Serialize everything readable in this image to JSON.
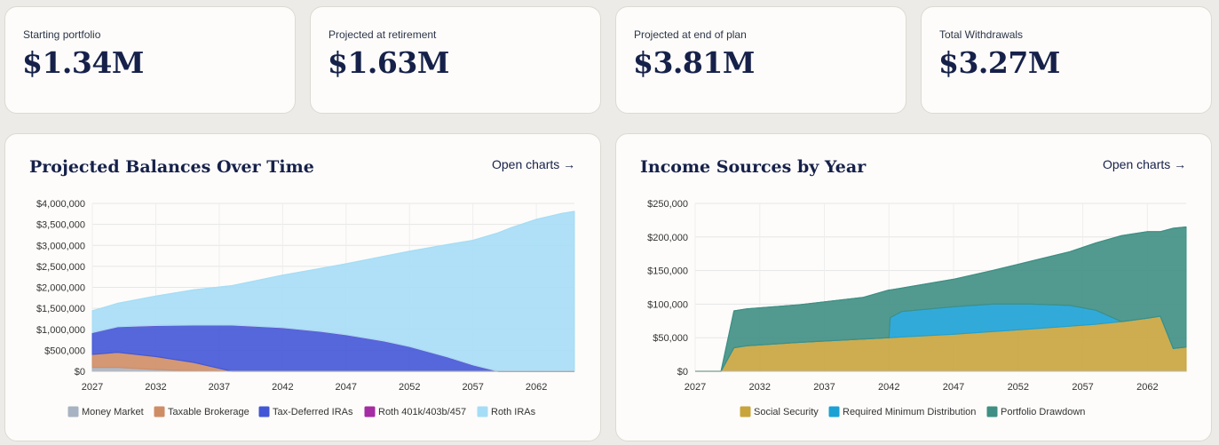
{
  "stats": [
    {
      "label": "Starting portfolio",
      "value": "$1.34M"
    },
    {
      "label": "Projected at retirement",
      "value": "$1.63M"
    },
    {
      "label": "Projected at end of plan",
      "value": "$3.81M"
    },
    {
      "label": "Total Withdrawals",
      "value": "$3.27M"
    }
  ],
  "panels": {
    "balances": {
      "title": "Projected Balances Over Time",
      "link": "Open charts →"
    },
    "income": {
      "title": "Income Sources by Year",
      "link": "Open charts →"
    }
  },
  "chart_data": [
    {
      "type": "area",
      "stacked": true,
      "title": "Projected Balances Over Time",
      "x_ticks": [
        2027,
        2032,
        2037,
        2042,
        2047,
        2052,
        2057,
        2062
      ],
      "xlim": [
        2027,
        2065
      ],
      "ylim": [
        0,
        4000000
      ],
      "y_ticks": [
        0,
        500000,
        1000000,
        1500000,
        2000000,
        2500000,
        3000000,
        3500000,
        4000000
      ],
      "y_tick_labels": [
        "$0",
        "$500,000",
        "$1,000,000",
        "$1,500,000",
        "$2,000,000",
        "$2,500,000",
        "$3,000,000",
        "$3,500,000",
        "$4,000,000"
      ],
      "grid": true,
      "legend": "bottom",
      "x": [
        2027,
        2029,
        2032,
        2035,
        2038,
        2042,
        2045,
        2047,
        2050,
        2052,
        2055,
        2057,
        2059,
        2060,
        2062,
        2064,
        2065
      ],
      "series": [
        {
          "name": "Money Market",
          "color": "#a7b3c2",
          "values": [
            90000,
            90000,
            40000,
            10000,
            0,
            0,
            0,
            0,
            0,
            0,
            0,
            0,
            0,
            0,
            0,
            0,
            0
          ]
        },
        {
          "name": "Taxable Brokerage",
          "color": "#cf8d66",
          "values": [
            310000,
            360000,
            310000,
            200000,
            0,
            0,
            0,
            0,
            0,
            0,
            0,
            0,
            0,
            0,
            0,
            0,
            0
          ]
        },
        {
          "name": "Tax-Deferred IRAs",
          "color": "#4257d6",
          "values": [
            520000,
            610000,
            740000,
            890000,
            1100000,
            1040000,
            950000,
            870000,
            720000,
            590000,
            340000,
            150000,
            0,
            0,
            0,
            0,
            0
          ]
        },
        {
          "name": "Roth 401k/403b/457",
          "color": "#a52ca2",
          "values": [
            0,
            0,
            0,
            0,
            0,
            0,
            0,
            0,
            0,
            0,
            0,
            0,
            0,
            0,
            0,
            0,
            0
          ]
        },
        {
          "name": "Roth IRAs",
          "color": "#a6ddf6",
          "values": [
            520000,
            560000,
            700000,
            840000,
            940000,
            1250000,
            1500000,
            1690000,
            2020000,
            2270000,
            2680000,
            2970000,
            3300000,
            3420000,
            3620000,
            3760000,
            3810000
          ]
        }
      ]
    },
    {
      "type": "area",
      "stacked": true,
      "title": "Income Sources by Year",
      "x_ticks": [
        2027,
        2032,
        2037,
        2042,
        2047,
        2052,
        2057,
        2062
      ],
      "xlim": [
        2027,
        2065
      ],
      "ylim": [
        0,
        250000
      ],
      "y_ticks": [
        0,
        50000,
        100000,
        150000,
        200000,
        250000
      ],
      "y_tick_labels": [
        "$0",
        "$50,000",
        "$100,000",
        "$150,000",
        "$200,000",
        "$250,000"
      ],
      "grid": true,
      "legend": "bottom",
      "x": [
        2027,
        2029,
        2030,
        2031,
        2035,
        2040,
        2042,
        2042.1,
        2043,
        2047,
        2050,
        2053,
        2056,
        2058,
        2060,
        2062,
        2063,
        2064,
        2065
      ],
      "series": [
        {
          "name": "Social Security",
          "color": "#c8a43c",
          "values": [
            0,
            0,
            35000,
            38000,
            43000,
            48000,
            50000,
            50000,
            51000,
            55000,
            59000,
            63000,
            67000,
            70000,
            74000,
            79000,
            82000,
            34000,
            36000
          ]
        },
        {
          "name": "Required Minimum Distribution",
          "color": "#1ca1d5",
          "values": [
            0,
            0,
            0,
            0,
            0,
            0,
            0,
            30000,
            38000,
            41000,
            41000,
            37000,
            31000,
            21000,
            0,
            0,
            0,
            0,
            0
          ]
        },
        {
          "name": "Portfolio Drawdown",
          "color": "#3f8f84",
          "values": [
            0,
            0,
            55000,
            55000,
            56000,
            62000,
            71000,
            41000,
            35000,
            41000,
            50000,
            64000,
            80000,
            100000,
            128000,
            129000,
            126000,
            179000,
            179000
          ]
        }
      ]
    }
  ]
}
